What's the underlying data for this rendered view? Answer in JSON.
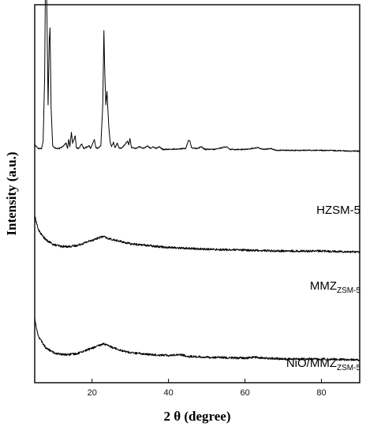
{
  "chart_data": {
    "type": "line",
    "xlabel": "2 θ (degree)",
    "ylabel": "Intensity (a.u.)",
    "xlim": [
      5,
      90
    ],
    "xticks": [
      20,
      40,
      60,
      80
    ],
    "yticks_shown": false,
    "grid": false,
    "legend": "none; series labelled inline at right",
    "series": [
      {
        "name": "HZSM-5",
        "name_main": "HZSM-5",
        "name_sub": "",
        "baseline_offset": 2.3,
        "noise": 0.006,
        "points": [
          [
            5,
            0.06
          ],
          [
            6,
            0.02
          ],
          [
            6.8,
            0.02
          ],
          [
            7.2,
            0.1
          ],
          [
            7.6,
            0.8
          ],
          [
            7.9,
            2.3
          ],
          [
            8.2,
            1.5
          ],
          [
            8.5,
            0.5
          ],
          [
            8.8,
            1.2
          ],
          [
            9.0,
            1.35
          ],
          [
            9.3,
            0.45
          ],
          [
            9.7,
            0.05
          ],
          [
            10.5,
            0.02
          ],
          [
            11.5,
            0.02
          ],
          [
            12.5,
            0.05
          ],
          [
            13.2,
            0.08
          ],
          [
            13.6,
            0.02
          ],
          [
            13.9,
            0.12
          ],
          [
            14.2,
            0.04
          ],
          [
            14.6,
            0.2
          ],
          [
            14.9,
            0.08
          ],
          [
            15.3,
            0.12
          ],
          [
            15.6,
            0.16
          ],
          [
            15.9,
            0.03
          ],
          [
            16.5,
            0.02
          ],
          [
            17.3,
            0.07
          ],
          [
            17.8,
            0.02
          ],
          [
            19.2,
            0.05
          ],
          [
            19.6,
            0.02
          ],
          [
            20.2,
            0.08
          ],
          [
            20.6,
            0.12
          ],
          [
            21.0,
            0.03
          ],
          [
            21.5,
            0.02
          ],
          [
            22.3,
            0.05
          ],
          [
            22.8,
            0.5
          ],
          [
            23.1,
            1.32
          ],
          [
            23.3,
            0.9
          ],
          [
            23.6,
            0.5
          ],
          [
            23.9,
            0.65
          ],
          [
            24.1,
            0.48
          ],
          [
            24.4,
            0.25
          ],
          [
            24.7,
            0.1
          ],
          [
            25.1,
            0.04
          ],
          [
            25.6,
            0.09
          ],
          [
            26.0,
            0.03
          ],
          [
            26.6,
            0.08
          ],
          [
            27.0,
            0.03
          ],
          [
            27.7,
            0.02
          ],
          [
            29.3,
            0.1
          ],
          [
            29.6,
            0.06
          ],
          [
            29.9,
            0.13
          ],
          [
            30.3,
            0.03
          ],
          [
            31.5,
            0.02
          ],
          [
            32.3,
            0.04
          ],
          [
            33.5,
            0.02
          ],
          [
            34.5,
            0.05
          ],
          [
            35.3,
            0.02
          ],
          [
            36.0,
            0.04
          ],
          [
            36.8,
            0.02
          ],
          [
            37.5,
            0.04
          ],
          [
            38.5,
            0.01
          ],
          [
            40,
            0.01
          ],
          [
            44.5,
            0.02
          ],
          [
            45.2,
            0.11
          ],
          [
            45.6,
            0.1
          ],
          [
            46.0,
            0.03
          ],
          [
            47.5,
            0.02
          ],
          [
            48.6,
            0.04
          ],
          [
            49.5,
            0.01
          ],
          [
            52,
            0.01
          ],
          [
            55.1,
            0.04
          ],
          [
            56,
            0.01
          ],
          [
            60,
            0.01
          ],
          [
            63.5,
            0.03
          ],
          [
            64.5,
            0.01
          ],
          [
            66.8,
            0.02
          ],
          [
            68,
            0.0
          ],
          [
            80,
            0.0
          ],
          [
            90,
            -0.01
          ]
        ]
      },
      {
        "name": "MMZ_ZSM-5",
        "name_main": "MMZ",
        "name_sub": "ZSM-5",
        "baseline_offset": 1.2,
        "noise": 0.012,
        "points": [
          [
            5,
            0.38
          ],
          [
            5.5,
            0.3
          ],
          [
            6,
            0.22
          ],
          [
            7,
            0.16
          ],
          [
            8,
            0.11
          ],
          [
            10,
            0.06
          ],
          [
            12,
            0.04
          ],
          [
            14,
            0.04
          ],
          [
            16,
            0.05
          ],
          [
            18,
            0.08
          ],
          [
            20,
            0.11
          ],
          [
            22,
            0.14
          ],
          [
            23,
            0.15
          ],
          [
            24,
            0.13
          ],
          [
            26,
            0.11
          ],
          [
            28,
            0.09
          ],
          [
            30,
            0.07
          ],
          [
            35,
            0.05
          ],
          [
            40,
            0.03
          ],
          [
            45,
            0.02
          ],
          [
            50,
            0.01
          ],
          [
            60,
            0.0
          ],
          [
            70,
            -0.01
          ],
          [
            80,
            -0.01
          ],
          [
            90,
            -0.02
          ]
        ]
      },
      {
        "name": "NiO/MMZ_ZSM-5",
        "name_main": "NiO/MMZ",
        "name_sub": "ZSM-5",
        "baseline_offset": 0.0,
        "noise": 0.012,
        "points": [
          [
            5,
            0.45
          ],
          [
            5.5,
            0.33
          ],
          [
            6,
            0.25
          ],
          [
            7,
            0.18
          ],
          [
            8,
            0.12
          ],
          [
            10,
            0.07
          ],
          [
            12,
            0.05
          ],
          [
            14,
            0.05
          ],
          [
            16,
            0.06
          ],
          [
            18,
            0.09
          ],
          [
            20,
            0.12
          ],
          [
            22,
            0.15
          ],
          [
            23,
            0.17
          ],
          [
            24,
            0.15
          ],
          [
            26,
            0.12
          ],
          [
            28,
            0.09
          ],
          [
            30,
            0.07
          ],
          [
            35,
            0.05
          ],
          [
            40,
            0.04
          ],
          [
            43,
            0.05
          ],
          [
            45,
            0.03
          ],
          [
            50,
            0.02
          ],
          [
            60,
            0.01
          ],
          [
            62.5,
            0.02
          ],
          [
            65,
            0.01
          ],
          [
            70,
            0.0
          ],
          [
            80,
            0.0
          ],
          [
            90,
            -0.01
          ]
        ]
      }
    ]
  }
}
